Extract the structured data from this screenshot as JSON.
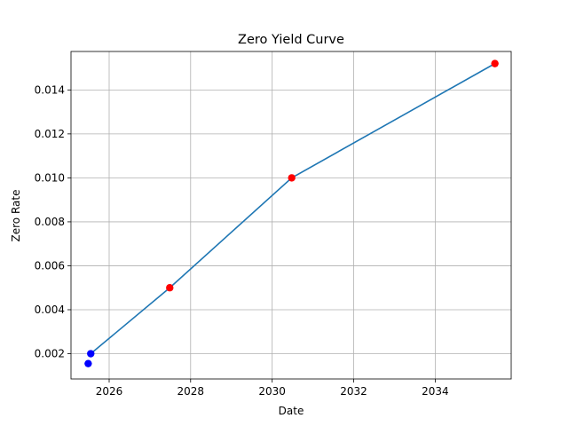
{
  "chart_data": {
    "type": "line",
    "title": "Zero Yield Curve",
    "xlabel": "Date",
    "ylabel": "Zero Rate",
    "x_scale": "date",
    "xlim": [
      "2025-01-24",
      "2035-11-13"
    ],
    "ylim": [
      0.00085,
      0.01575
    ],
    "grid": true,
    "x_ticks": [
      {
        "value": "2026-01-01",
        "label": "2026"
      },
      {
        "value": "2028-01-01",
        "label": "2028"
      },
      {
        "value": "2030-01-01",
        "label": "2030"
      },
      {
        "value": "2032-01-01",
        "label": "2032"
      },
      {
        "value": "2034-01-01",
        "label": "2034"
      }
    ],
    "y_ticks": [
      {
        "value": 0.002,
        "label": "0.002"
      },
      {
        "value": 0.004,
        "label": "0.004"
      },
      {
        "value": 0.006,
        "label": "0.006"
      },
      {
        "value": 0.008,
        "label": "0.008"
      },
      {
        "value": 0.01,
        "label": "0.010"
      },
      {
        "value": 0.012,
        "label": "0.012"
      },
      {
        "value": 0.014,
        "label": "0.014"
      }
    ],
    "line": {
      "color": "#1f77b4",
      "x": [
        "2025-07-20",
        "2027-06-28",
        "2030-06-25",
        "2035-06-20"
      ],
      "y": [
        0.002,
        0.005,
        0.01,
        0.0152
      ]
    },
    "markers": [
      {
        "x": "2025-06-27",
        "y": 0.00155,
        "color": "#0000ff"
      },
      {
        "x": "2025-07-20",
        "y": 0.002,
        "color": "#0000ff"
      },
      {
        "x": "2027-06-28",
        "y": 0.005,
        "color": "#ff0000"
      },
      {
        "x": "2030-06-25",
        "y": 0.01,
        "color": "#ff0000"
      },
      {
        "x": "2035-06-20",
        "y": 0.0152,
        "color": "#ff0000"
      }
    ]
  }
}
